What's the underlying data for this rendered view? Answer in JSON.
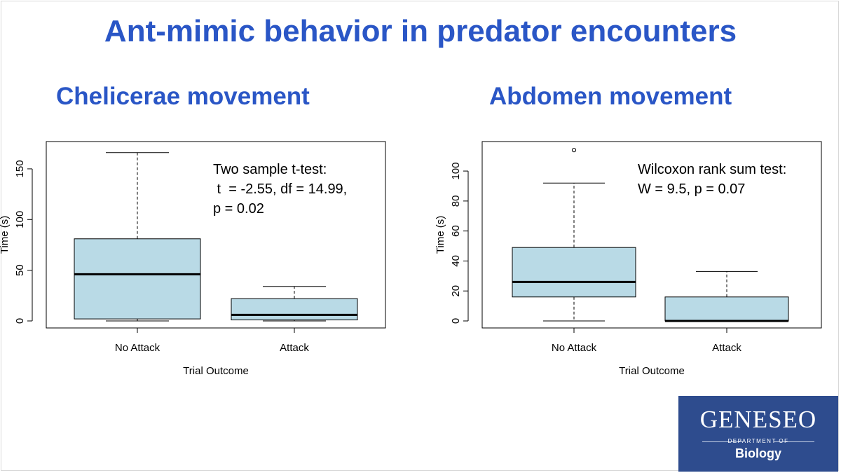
{
  "slide": {
    "title": "Ant-mimic behavior in predator encounters"
  },
  "chart_data": [
    {
      "type": "box",
      "title": "Chelicerae movement",
      "xlabel": "Trial Outcome",
      "ylabel": "Time (s)",
      "ylim": [
        0,
        170
      ],
      "yticks": [
        0,
        50,
        100,
        150
      ],
      "categories": [
        "No Attack",
        "Attack"
      ],
      "boxes": [
        {
          "category": "No Attack",
          "min": 0,
          "q1": 2,
          "median": 46,
          "q3": 81,
          "max": 166,
          "outliers": []
        },
        {
          "category": "Attack",
          "min": 0,
          "q1": 1,
          "median": 6,
          "q3": 22,
          "max": 34,
          "outliers": []
        }
      ],
      "fill_color": "#b9dae6",
      "annotation": [
        "Two sample t-test:",
        " t  = -2.55, df = 14.99,",
        "p = 0.02"
      ]
    },
    {
      "type": "box",
      "title": "Abdomen movement",
      "xlabel": "Trial Outcome",
      "ylabel": "Time (s)",
      "ylim": [
        0,
        115
      ],
      "yticks": [
        0,
        20,
        40,
        60,
        80,
        100
      ],
      "categories": [
        "No Attack",
        "Attack"
      ],
      "boxes": [
        {
          "category": "No Attack",
          "min": 0,
          "q1": 16,
          "median": 26,
          "q3": 49,
          "max": 92,
          "outliers": [
            114
          ]
        },
        {
          "category": "Attack",
          "min": 0,
          "q1": 0,
          "median": 0,
          "q3": 16,
          "max": 33,
          "outliers": []
        }
      ],
      "fill_color": "#b9dae6",
      "annotation": [
        "Wilcoxon rank sum test:",
        "W = 9.5, p = 0.07"
      ]
    }
  ],
  "logo": {
    "name": "GENESEO",
    "dept": "DEPARTMENT OF",
    "sub": "Biology",
    "background": "#2e4c8e"
  }
}
